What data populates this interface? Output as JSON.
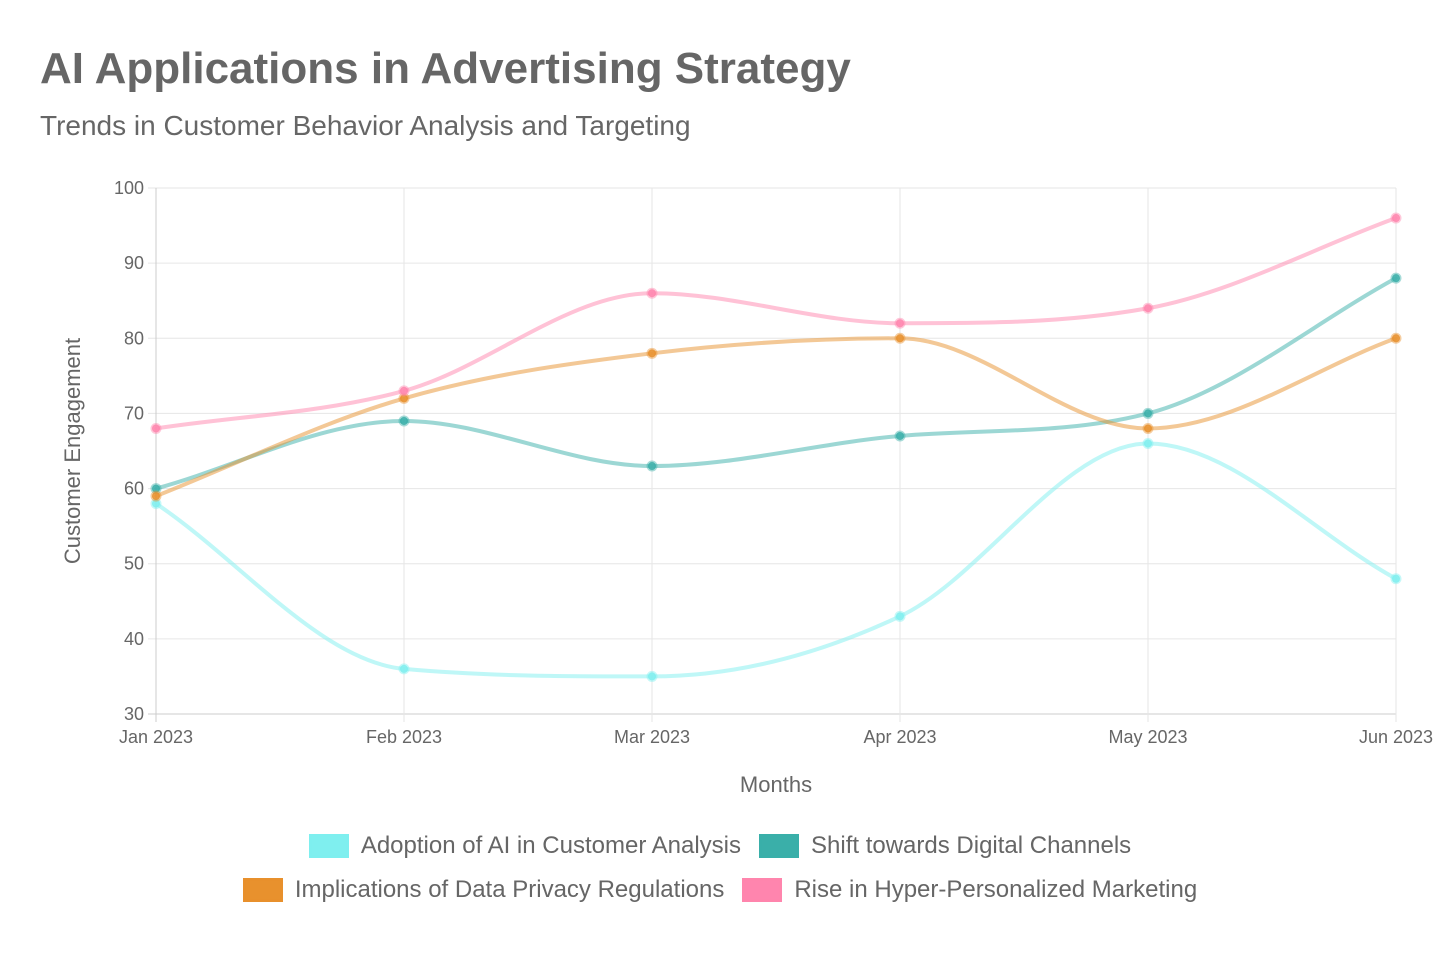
{
  "title": "AI Applications in Advertising Strategy",
  "subtitle": "Trends in Customer Behavior Analysis and Targeting",
  "chart_data": {
    "type": "line",
    "categories": [
      "Jan 2023",
      "Feb 2023",
      "Mar 2023",
      "Apr 2023",
      "May 2023",
      "Jun 2023"
    ],
    "xlabel": "Months",
    "ylabel": "Customer Engagement",
    "ylim": [
      30,
      100
    ],
    "yticks": [
      30,
      40,
      50,
      60,
      70,
      80,
      90,
      100
    ],
    "grid": true,
    "legend_position": "bottom",
    "series": [
      {
        "name": "Adoption of AI in Customer Analysis",
        "values": [
          58,
          36,
          35,
          43,
          66,
          48
        ],
        "color": "#7FEFEF"
      },
      {
        "name": "Shift towards Digital Channels",
        "values": [
          60,
          69,
          63,
          67,
          70,
          88
        ],
        "color": "#3AAFA9"
      },
      {
        "name": "Implications of Data Privacy Regulations",
        "values": [
          59,
          72,
          78,
          80,
          68,
          80
        ],
        "color": "#E8912D"
      },
      {
        "name": "Rise in Hyper-Personalized Marketing",
        "values": [
          68,
          73,
          86,
          82,
          84,
          96
        ],
        "color": "#FF85AE"
      }
    ]
  }
}
